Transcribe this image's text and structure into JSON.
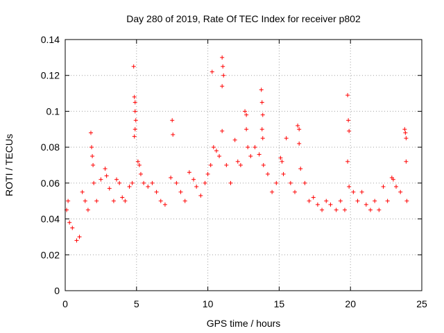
{
  "chart_data": {
    "type": "scatter",
    "title": "Day 280 of 2019, Rate Of TEC Index for receiver p802",
    "xlabel": "GPS time / hours",
    "ylabel": "ROTI / TECUs",
    "xlim": [
      0,
      25
    ],
    "ylim": [
      0,
      0.14
    ],
    "x_ticks": [
      "0",
      "5",
      "10",
      "15",
      "20",
      "25"
    ],
    "y_ticks": [
      "0",
      "0.02",
      "0.04",
      "0.06",
      "0.08",
      "0.1",
      "0.12",
      "0.14"
    ],
    "grid": true,
    "marker": "plus",
    "color": "#ff0000",
    "series": [
      {
        "points": [
          [
            0.1,
            0.045
          ],
          [
            0.2,
            0.05
          ],
          [
            0.3,
            0.038
          ],
          [
            0.5,
            0.035
          ],
          [
            0.8,
            0.028
          ],
          [
            1.0,
            0.03
          ],
          [
            1.2,
            0.055
          ],
          [
            1.4,
            0.05
          ],
          [
            1.6,
            0.045
          ],
          [
            1.8,
            0.088
          ],
          [
            1.85,
            0.08
          ],
          [
            1.9,
            0.075
          ],
          [
            1.95,
            0.07
          ],
          [
            2.0,
            0.06
          ],
          [
            2.2,
            0.05
          ],
          [
            2.5,
            0.062
          ],
          [
            2.8,
            0.068
          ],
          [
            2.9,
            0.064
          ],
          [
            3.1,
            0.057
          ],
          [
            3.4,
            0.05
          ],
          [
            3.6,
            0.062
          ],
          [
            3.8,
            0.06
          ],
          [
            4.0,
            0.052
          ],
          [
            4.2,
            0.05
          ],
          [
            4.5,
            0.058
          ],
          [
            4.7,
            0.06
          ],
          [
            4.8,
            0.125
          ],
          [
            4.85,
            0.108
          ],
          [
            4.9,
            0.105
          ],
          [
            4.9,
            0.1
          ],
          [
            4.95,
            0.095
          ],
          [
            4.9,
            0.09
          ],
          [
            4.85,
            0.086
          ],
          [
            5.1,
            0.072
          ],
          [
            5.2,
            0.07
          ],
          [
            5.3,
            0.065
          ],
          [
            5.5,
            0.06
          ],
          [
            5.8,
            0.058
          ],
          [
            6.1,
            0.06
          ],
          [
            6.4,
            0.055
          ],
          [
            6.7,
            0.05
          ],
          [
            7.0,
            0.048
          ],
          [
            7.4,
            0.063
          ],
          [
            7.5,
            0.095
          ],
          [
            7.55,
            0.087
          ],
          [
            7.8,
            0.06
          ],
          [
            8.1,
            0.055
          ],
          [
            8.4,
            0.05
          ],
          [
            8.7,
            0.066
          ],
          [
            9.0,
            0.062
          ],
          [
            9.2,
            0.058
          ],
          [
            9.5,
            0.053
          ],
          [
            9.8,
            0.06
          ],
          [
            10.0,
            0.065
          ],
          [
            10.2,
            0.07
          ],
          [
            10.3,
            0.122
          ],
          [
            10.4,
            0.08
          ],
          [
            10.6,
            0.078
          ],
          [
            10.8,
            0.075
          ],
          [
            11.0,
            0.13
          ],
          [
            11.05,
            0.125
          ],
          [
            11.1,
            0.12
          ],
          [
            11.0,
            0.114
          ],
          [
            11.0,
            0.089
          ],
          [
            11.3,
            0.07
          ],
          [
            11.6,
            0.06
          ],
          [
            11.9,
            0.084
          ],
          [
            12.1,
            0.072
          ],
          [
            12.3,
            0.07
          ],
          [
            12.6,
            0.1
          ],
          [
            12.7,
            0.098
          ],
          [
            12.7,
            0.09
          ],
          [
            12.8,
            0.08
          ],
          [
            13.0,
            0.075
          ],
          [
            13.3,
            0.08
          ],
          [
            13.6,
            0.076
          ],
          [
            13.75,
            0.112
          ],
          [
            13.8,
            0.105
          ],
          [
            13.85,
            0.098
          ],
          [
            13.8,
            0.09
          ],
          [
            13.85,
            0.085
          ],
          [
            13.9,
            0.07
          ],
          [
            14.2,
            0.065
          ],
          [
            14.5,
            0.055
          ],
          [
            14.8,
            0.06
          ],
          [
            15.1,
            0.074
          ],
          [
            15.2,
            0.072
          ],
          [
            15.3,
            0.065
          ],
          [
            15.5,
            0.085
          ],
          [
            15.8,
            0.06
          ],
          [
            16.1,
            0.055
          ],
          [
            16.3,
            0.092
          ],
          [
            16.4,
            0.09
          ],
          [
            16.4,
            0.082
          ],
          [
            16.5,
            0.068
          ],
          [
            16.8,
            0.06
          ],
          [
            17.1,
            0.05
          ],
          [
            17.4,
            0.052
          ],
          [
            17.7,
            0.048
          ],
          [
            18.0,
            0.045
          ],
          [
            18.3,
            0.05
          ],
          [
            18.6,
            0.048
          ],
          [
            19.0,
            0.045
          ],
          [
            19.3,
            0.05
          ],
          [
            19.6,
            0.045
          ],
          [
            19.8,
            0.109
          ],
          [
            19.85,
            0.095
          ],
          [
            19.9,
            0.089
          ],
          [
            19.8,
            0.072
          ],
          [
            19.9,
            0.058
          ],
          [
            20.2,
            0.055
          ],
          [
            20.5,
            0.05
          ],
          [
            20.8,
            0.055
          ],
          [
            21.1,
            0.048
          ],
          [
            21.4,
            0.045
          ],
          [
            21.7,
            0.05
          ],
          [
            22.0,
            0.045
          ],
          [
            22.3,
            0.058
          ],
          [
            22.6,
            0.05
          ],
          [
            22.9,
            0.063
          ],
          [
            23.0,
            0.062
          ],
          [
            23.2,
            0.058
          ],
          [
            23.5,
            0.055
          ],
          [
            23.8,
            0.09
          ],
          [
            23.85,
            0.088
          ],
          [
            23.9,
            0.085
          ],
          [
            23.9,
            0.072
          ],
          [
            23.95,
            0.05
          ]
        ]
      }
    ]
  }
}
